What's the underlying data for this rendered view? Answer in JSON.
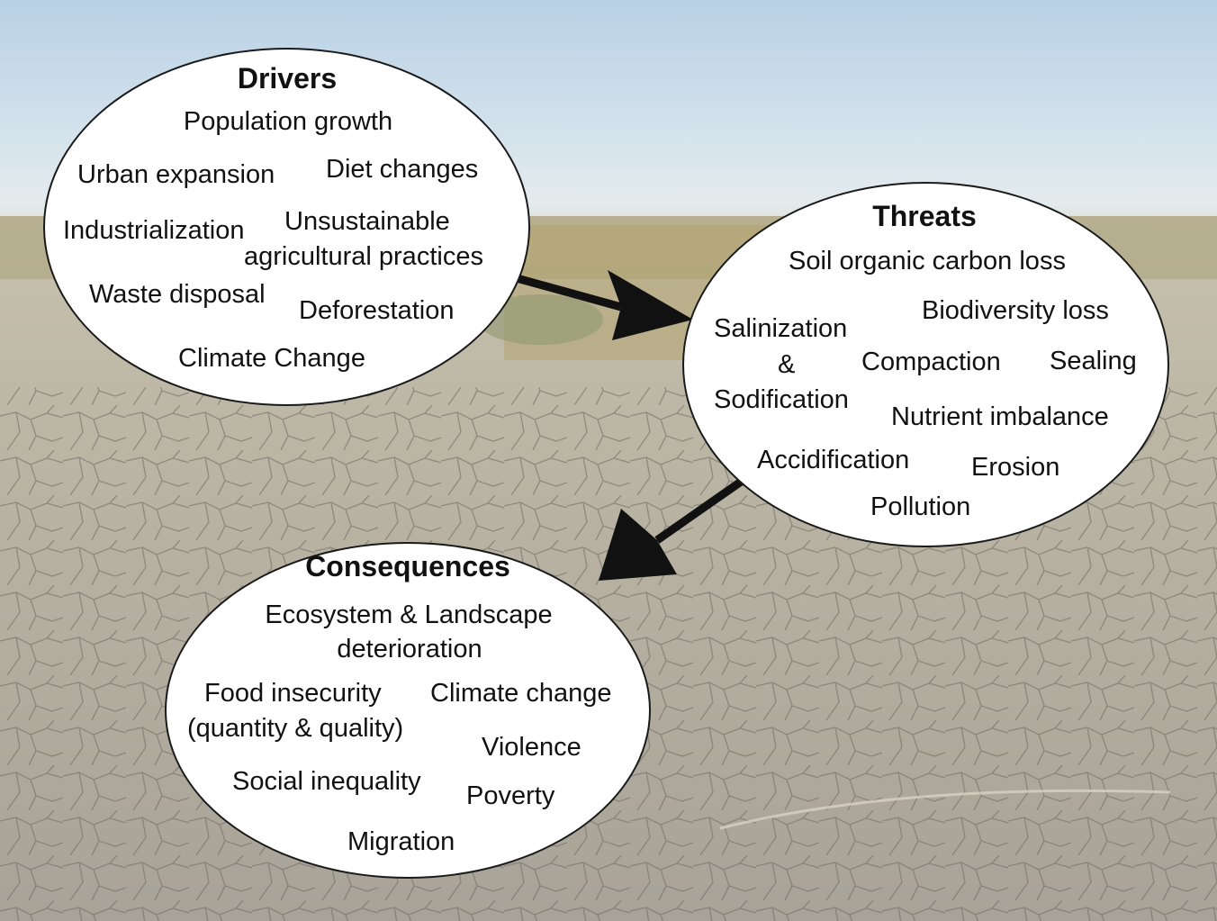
{
  "drivers": {
    "title": "Drivers",
    "items": [
      "Population growth",
      "Urban expansion",
      "Diet changes",
      "Industrialization",
      "Unsustainable",
      "agricultural practices",
      "Waste disposal",
      "Deforestation",
      "Climate Change"
    ]
  },
  "threats": {
    "title": "Threats",
    "items": [
      "Soil organic carbon loss",
      "Biodiversity loss",
      "Salinization",
      "&",
      "Sodification",
      "Compaction",
      "Sealing",
      "Nutrient imbalance",
      "Accidification",
      "Erosion",
      "Pollution"
    ]
  },
  "consequences": {
    "title": "Consequences",
    "items": [
      "Ecosystem & Landscape",
      "deterioration",
      "Food insecurity",
      "Climate change",
      "(quantity & quality)",
      "Violence",
      "Social inequality",
      "Poverty",
      "Migration"
    ]
  }
}
